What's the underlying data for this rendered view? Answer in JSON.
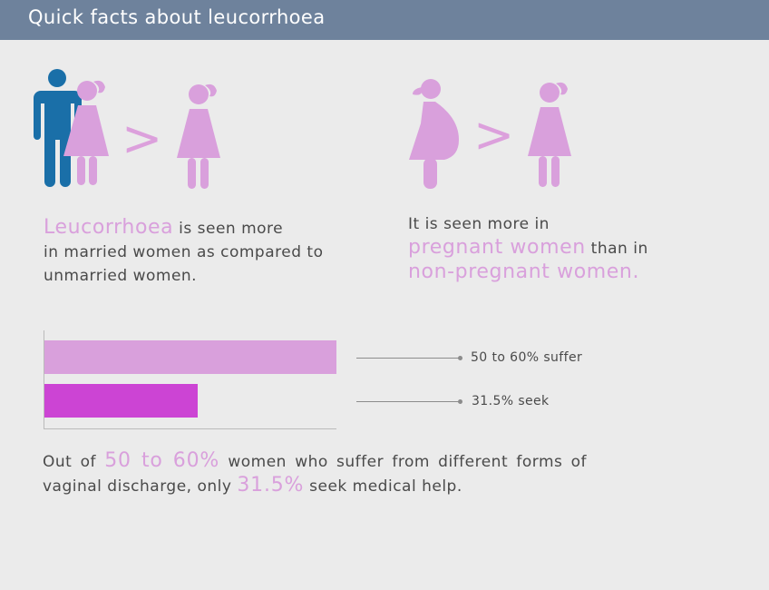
{
  "header": {
    "title": "Quick facts about leucorrhoea"
  },
  "comparisons": {
    "left": {
      "symbol": ">",
      "lead": "Leucorrhoea",
      "line1_rest": " is seen more",
      "line2": "in married women as compared to",
      "line3": "unmarried women."
    },
    "right": {
      "symbol": ">",
      "line1": "It is seen more in",
      "hl1": "pregnant women",
      "mid": " than in",
      "hl2": "non-pregnant women."
    }
  },
  "chart_data": {
    "type": "bar",
    "orientation": "horizontal",
    "categories": [
      "50 to 60% suffer",
      "31.5% seek"
    ],
    "values": [
      60,
      31.5
    ],
    "colors": [
      "#d9a0dc",
      "#cc44d4"
    ],
    "xlim": [
      0,
      60
    ]
  },
  "bottom": {
    "t1": "Out of ",
    "b1": "50 to 60%",
    "t2": " women who suffer from different forms of vaginal discharge, only ",
    "b2": "31.5%",
    "t3": " seek medical help."
  },
  "colors": {
    "header": "#6e829c",
    "pink": "#d9a0dc",
    "magenta": "#cc44d4",
    "blue": "#1a6fa8"
  },
  "icons": [
    "man-icon",
    "married-woman-icon",
    "woman-icon",
    "pregnant-woman-icon",
    "woman-icon"
  ]
}
